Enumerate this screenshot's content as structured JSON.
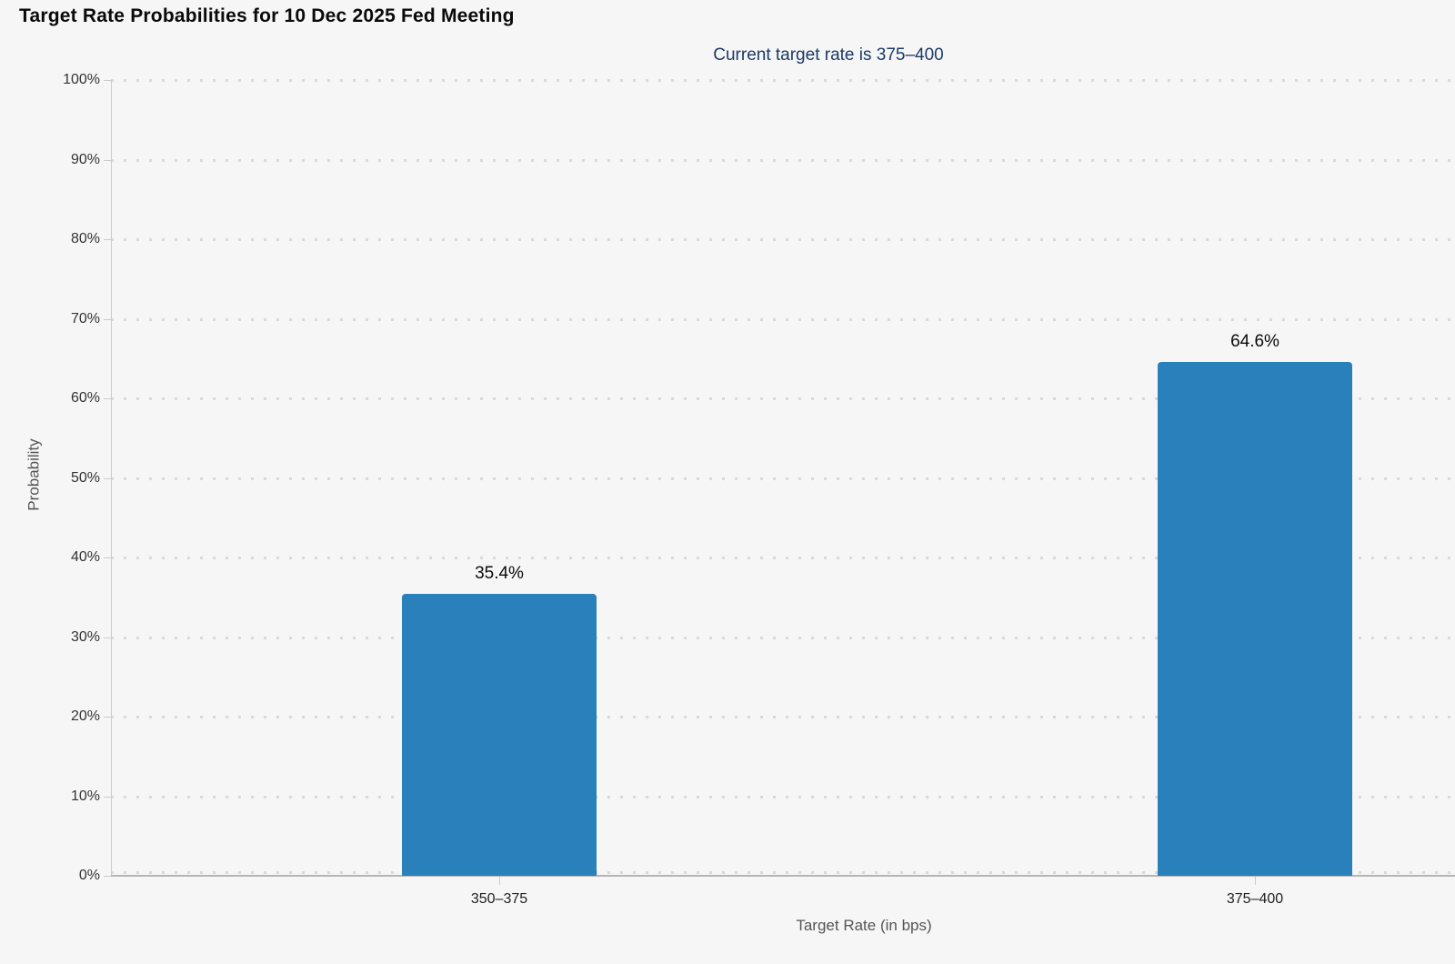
{
  "page": {
    "title": "Target Rate Probabilities for 10 Dec 2025 Fed Meeting",
    "subtitle": "Current target rate is 375–400"
  },
  "colors": {
    "background": "#f6f6f6",
    "bar": "#2a80ba",
    "subtitle_text": "#1c3a66",
    "grid_dot": "#d9d9d9",
    "axis_line": "#cccccc",
    "baseline": "#b5b5b5",
    "tick_label": "#333333",
    "value_label": "#0a0a0a",
    "axis_title": "#555555"
  },
  "chart_data": {
    "type": "bar",
    "title": "Target Rate Probabilities for 10 Dec 2025 Fed Meeting",
    "subtitle": "Current target rate is 375–400",
    "categories": [
      "350–375",
      "375–400"
    ],
    "values": [
      35.4,
      64.6
    ],
    "value_labels": [
      "35.4%",
      "64.6%"
    ],
    "xlabel": "Target Rate (in bps)",
    "ylabel": "Probability",
    "ylim": [
      0,
      100
    ],
    "ytick_step": 10,
    "ytick_labels": [
      "0%",
      "10%",
      "20%",
      "30%",
      "40%",
      "50%",
      "60%",
      "70%",
      "80%",
      "90%",
      "100%"
    ],
    "grid": "horizontal-dotted",
    "legend": "none",
    "bar_color": "#2a80ba"
  }
}
